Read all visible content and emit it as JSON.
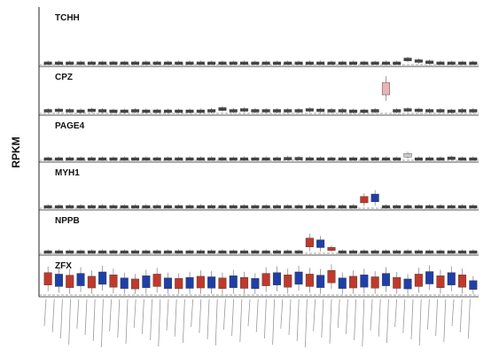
{
  "ylabel": "RPKM",
  "chart_data": [
    {
      "type": "box",
      "title": "TCHH",
      "ylim": [
        0,
        100
      ],
      "values": [
        1,
        1,
        1,
        1,
        1,
        1,
        1,
        1,
        1,
        1,
        1,
        1,
        1,
        1,
        1,
        1,
        1,
        1,
        1,
        1,
        1,
        1,
        1,
        1,
        1,
        1,
        1,
        1,
        1,
        1,
        1,
        1,
        1,
        8,
        5,
        3,
        1,
        1,
        1,
        1
      ],
      "colors": [
        "#444",
        "#444",
        "#444",
        "#444",
        "#444",
        "#444",
        "#444",
        "#444",
        "#444",
        "#444",
        "#444",
        "#444",
        "#444",
        "#444",
        "#444",
        "#444",
        "#444",
        "#444",
        "#444",
        "#444",
        "#444",
        "#444",
        "#444",
        "#444",
        "#444",
        "#444",
        "#444",
        "#444",
        "#444",
        "#444",
        "#444",
        "#444",
        "#444",
        "#444",
        "#444",
        "#444",
        "#444",
        "#444",
        "#444",
        "#444"
      ]
    },
    {
      "type": "box",
      "title": "CPZ",
      "ylim": [
        0,
        100
      ],
      "values": [
        4,
        5,
        4,
        3,
        5,
        4,
        3,
        3,
        4,
        3,
        3,
        3,
        3,
        3,
        3,
        4,
        8,
        4,
        6,
        4,
        4,
        4,
        4,
        4,
        6,
        5,
        4,
        4,
        3,
        3,
        4,
        55,
        4,
        6,
        5,
        4,
        4,
        3,
        4,
        4
      ],
      "colors": [
        "#444",
        "#444",
        "#444",
        "#444",
        "#444",
        "#444",
        "#444",
        "#444",
        "#444",
        "#444",
        "#444",
        "#444",
        "#444",
        "#444",
        "#444",
        "#444",
        "#444",
        "#444",
        "#444",
        "#444",
        "#444",
        "#444",
        "#444",
        "#444",
        "#444",
        "#444",
        "#444",
        "#444",
        "#444",
        "#444",
        "#444",
        "#e8b4b4",
        "#444",
        "#444",
        "#444",
        "#444",
        "#444",
        "#444",
        "#444",
        "#444"
      ]
    },
    {
      "type": "box",
      "title": "PAGE4",
      "ylim": [
        0,
        100
      ],
      "values": [
        1,
        1,
        1,
        1,
        1,
        1,
        1,
        1,
        1,
        1,
        1,
        1,
        1,
        1,
        1,
        1,
        1,
        1,
        1,
        1,
        1,
        1,
        2,
        2,
        1,
        1,
        1,
        1,
        1,
        1,
        1,
        1,
        1,
        10,
        1,
        1,
        1,
        3,
        1,
        1
      ],
      "colors": [
        "#444",
        "#444",
        "#444",
        "#444",
        "#444",
        "#444",
        "#444",
        "#444",
        "#444",
        "#444",
        "#444",
        "#444",
        "#444",
        "#444",
        "#444",
        "#444",
        "#444",
        "#444",
        "#444",
        "#444",
        "#444",
        "#444",
        "#444",
        "#444",
        "#444",
        "#444",
        "#444",
        "#444",
        "#444",
        "#444",
        "#444",
        "#444",
        "#444",
        "#ccc",
        "#444",
        "#444",
        "#444",
        "#444",
        "#444",
        "#444"
      ]
    },
    {
      "type": "box",
      "title": "MYH1",
      "ylim": [
        0,
        100
      ],
      "values": [
        1,
        1,
        1,
        1,
        1,
        1,
        1,
        1,
        1,
        1,
        1,
        1,
        1,
        1,
        1,
        1,
        1,
        1,
        1,
        1,
        1,
        1,
        1,
        1,
        1,
        1,
        1,
        1,
        1,
        18,
        22,
        1,
        1,
        1,
        1,
        1,
        1,
        1,
        1,
        1
      ],
      "colors": [
        "#444",
        "#444",
        "#444",
        "#444",
        "#444",
        "#444",
        "#444",
        "#444",
        "#444",
        "#444",
        "#444",
        "#444",
        "#444",
        "#444",
        "#444",
        "#444",
        "#444",
        "#444",
        "#444",
        "#444",
        "#444",
        "#444",
        "#444",
        "#444",
        "#444",
        "#444",
        "#444",
        "#444",
        "#444",
        "#c0392b",
        "#1f3fa8",
        "#444",
        "#444",
        "#444",
        "#444",
        "#444",
        "#444",
        "#444",
        "#444",
        "#444"
      ]
    },
    {
      "type": "box",
      "title": "NPPB",
      "ylim": [
        0,
        100
      ],
      "values": [
        1,
        1,
        1,
        1,
        1,
        1,
        1,
        1,
        1,
        1,
        1,
        1,
        1,
        1,
        1,
        1,
        1,
        1,
        1,
        1,
        1,
        1,
        1,
        1,
        25,
        22,
        9,
        1,
        1,
        1,
        1,
        1,
        1,
        1,
        1,
        1,
        1,
        1,
        1,
        1
      ],
      "colors": [
        "#444",
        "#444",
        "#444",
        "#444",
        "#444",
        "#444",
        "#444",
        "#444",
        "#444",
        "#444",
        "#444",
        "#444",
        "#444",
        "#444",
        "#444",
        "#444",
        "#444",
        "#444",
        "#444",
        "#444",
        "#444",
        "#444",
        "#444",
        "#444",
        "#c0392b",
        "#1f3fa8",
        "#c0392b",
        "#444",
        "#444",
        "#444",
        "#444",
        "#444",
        "#444",
        "#444",
        "#444",
        "#444",
        "#444",
        "#444",
        "#444",
        "#444"
      ]
    },
    {
      "type": "box",
      "title": "ZFX",
      "ylim": [
        0,
        100
      ],
      "values": [
        42,
        38,
        35,
        40,
        33,
        44,
        36,
        30,
        28,
        34,
        38,
        30,
        29,
        31,
        33,
        32,
        30,
        34,
        31,
        29,
        40,
        42,
        36,
        44,
        38,
        35,
        48,
        30,
        33,
        36,
        32,
        40,
        31,
        28,
        38,
        45,
        34,
        42,
        36,
        25
      ],
      "colors": [
        "#c0392b",
        "#1f3fa8",
        "#c0392b",
        "#1f3fa8",
        "#c0392b",
        "#1f3fa8",
        "#c0392b",
        "#1f3fa8",
        "#c0392b",
        "#1f3fa8",
        "#c0392b",
        "#1f3fa8",
        "#c0392b",
        "#1f3fa8",
        "#c0392b",
        "#1f3fa8",
        "#c0392b",
        "#1f3fa8",
        "#c0392b",
        "#1f3fa8",
        "#c0392b",
        "#1f3fa8",
        "#c0392b",
        "#1f3fa8",
        "#c0392b",
        "#1f3fa8",
        "#c0392b",
        "#1f3fa8",
        "#c0392b",
        "#1f3fa8",
        "#c0392b",
        "#1f3fa8",
        "#c0392b",
        "#1f3fa8",
        "#c0392b",
        "#1f3fa8",
        "#c0392b",
        "#1f3fa8",
        "#c0392b",
        "#1f3fa8"
      ]
    }
  ]
}
